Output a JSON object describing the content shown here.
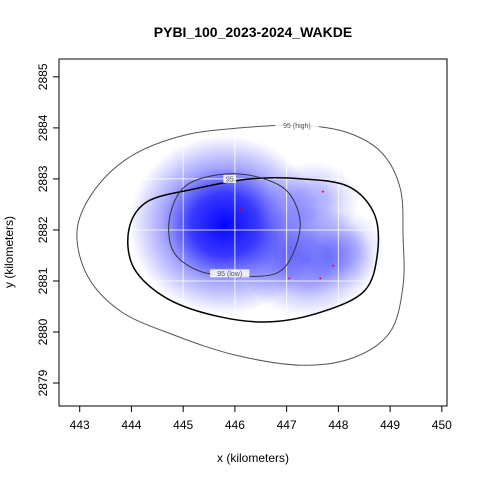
{
  "chart_data": {
    "type": "heatmap",
    "title": "PYBI_100_2023-2024_WAKDE",
    "xlabel": "x (kilometers)",
    "ylabel": "y (kilometers)",
    "xlim": [
      442.6,
      450.1
    ],
    "ylim": [
      2878.55,
      2885.35
    ],
    "x_ticks": [
      443,
      444,
      445,
      446,
      447,
      448,
      449,
      450
    ],
    "y_ticks": [
      2879,
      2880,
      2881,
      2882,
      2883,
      2884,
      2885
    ],
    "grid": true,
    "density_peak": {
      "x": 445.8,
      "y": 2882.1,
      "color": "#0000ff"
    },
    "contours": [
      {
        "name": "contour-95-high",
        "label": "95 (high)",
        "label_at": {
          "x": 447.2,
          "y": 2884.05
        },
        "color": "#555555",
        "points": [
          [
            447.3,
            2884.05
          ],
          [
            446.1,
            2884.0
          ],
          [
            445.0,
            2883.85
          ],
          [
            444.0,
            2883.45
          ],
          [
            443.3,
            2882.8
          ],
          [
            442.95,
            2882.0
          ],
          [
            443.15,
            2881.1
          ],
          [
            443.8,
            2880.4
          ],
          [
            444.8,
            2879.95
          ],
          [
            446.0,
            2879.55
          ],
          [
            447.3,
            2879.35
          ],
          [
            448.3,
            2879.5
          ],
          [
            449.0,
            2880.0
          ],
          [
            449.25,
            2880.9
          ],
          [
            449.25,
            2881.9
          ],
          [
            449.2,
            2882.8
          ],
          [
            448.85,
            2883.5
          ],
          [
            448.2,
            2883.9
          ]
        ]
      },
      {
        "name": "contour-95",
        "label": "95",
        "label_at": {
          "x": 445.9,
          "y": 2883.0
        },
        "color": "#000000",
        "points": [
          [
            446.3,
            2883.0
          ],
          [
            445.2,
            2882.8
          ],
          [
            444.3,
            2882.55
          ],
          [
            443.95,
            2882.0
          ],
          [
            444.05,
            2881.25
          ],
          [
            444.7,
            2880.65
          ],
          [
            445.7,
            2880.3
          ],
          [
            446.7,
            2880.2
          ],
          [
            447.7,
            2880.4
          ],
          [
            448.5,
            2880.8
          ],
          [
            448.75,
            2881.5
          ],
          [
            448.7,
            2882.3
          ],
          [
            448.2,
            2882.85
          ],
          [
            447.3,
            2883.0
          ]
        ]
      },
      {
        "name": "contour-95-low",
        "label": "95 (low)",
        "label_at": {
          "x": 445.9,
          "y": 2881.15
        },
        "color": "#333333",
        "points": [
          [
            446.0,
            2883.1
          ],
          [
            445.1,
            2882.9
          ],
          [
            444.75,
            2882.3
          ],
          [
            444.8,
            2881.6
          ],
          [
            445.3,
            2881.2
          ],
          [
            446.0,
            2881.1
          ],
          [
            446.8,
            2881.15
          ],
          [
            447.15,
            2881.6
          ],
          [
            447.25,
            2882.25
          ],
          [
            446.9,
            2882.85
          ]
        ]
      }
    ],
    "blobs": [
      {
        "x": 445.8,
        "y": 2882.1,
        "rx": 1.85,
        "ry": 1.75,
        "opacity": 1.0
      },
      {
        "x": 447.4,
        "y": 2881.4,
        "rx": 1.3,
        "ry": 1.1,
        "opacity": 0.55
      },
      {
        "x": 447.5,
        "y": 2882.55,
        "rx": 0.9,
        "ry": 0.8,
        "opacity": 0.35
      },
      {
        "x": 448.1,
        "y": 2881.6,
        "rx": 0.8,
        "ry": 0.8,
        "opacity": 0.3
      }
    ],
    "points": [
      {
        "x": 447.7,
        "y": 2882.75
      },
      {
        "x": 446.1,
        "y": 2882.4
      },
      {
        "x": 447.9,
        "y": 2881.3
      },
      {
        "x": 447.05,
        "y": 2881.05
      },
      {
        "x": 447.65,
        "y": 2881.05
      }
    ]
  }
}
